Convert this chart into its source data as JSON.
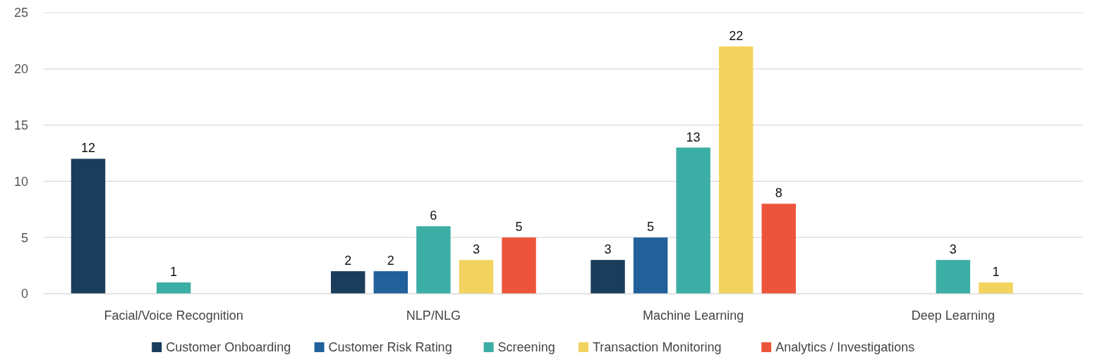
{
  "chart_data": {
    "type": "bar",
    "categories": [
      "Facial/Voice Recognition",
      "NLP/NLG",
      "Machine Learning",
      "Deep Learning"
    ],
    "series": [
      {
        "name": "Customer Onboarding",
        "color": "#1a3d5c",
        "values": [
          12,
          2,
          3,
          null
        ]
      },
      {
        "name": "Customer Risk Rating",
        "color": "#21609a",
        "values": [
          null,
          2,
          5,
          null
        ]
      },
      {
        "name": "Screening",
        "color": "#3daea5",
        "values": [
          1,
          6,
          13,
          3
        ]
      },
      {
        "name": "Transaction Monitoring",
        "color": "#f3d35f",
        "values": [
          null,
          3,
          22,
          1
        ]
      },
      {
        "name": "Analytics / Investigations",
        "color": "#ec553b",
        "values": [
          null,
          5,
          8,
          null
        ]
      }
    ],
    "ylim": [
      0,
      25
    ],
    "yticks": [
      0,
      5,
      10,
      15,
      20,
      25
    ],
    "grid": "y",
    "legend": "bottom",
    "data_labels": true
  }
}
